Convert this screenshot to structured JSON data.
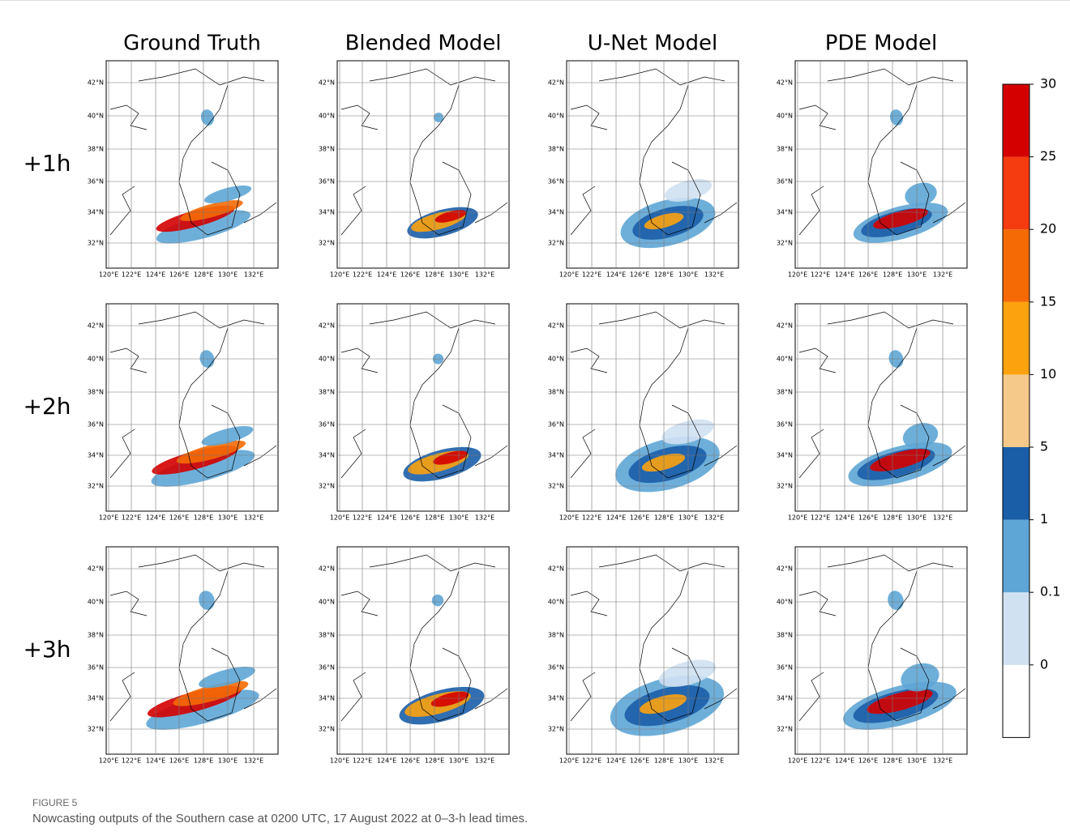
{
  "figure": {
    "column_titles": [
      "Ground Truth",
      "Blended Model",
      "U-Net Model",
      "PDE Model"
    ],
    "row_labels": [
      "+1h",
      "+2h",
      "+3h"
    ],
    "lat_labels": [
      "42°N",
      "40°N",
      "38°N",
      "36°N",
      "34°N",
      "32°N"
    ],
    "lon_labels": [
      "120°E",
      "122°E",
      "124°E",
      "126°E",
      "128°E",
      "130°E",
      "132°E"
    ],
    "colorbar": {
      "ticks": [
        0,
        0.1,
        1,
        5,
        10,
        15,
        20,
        25,
        30
      ],
      "colors": [
        "#ffffff",
        "#d0e1f2",
        "#5ea6d6",
        "#1b5ea8",
        "#f5c98a",
        "#fca20e",
        "#f56a04",
        "#f53b10",
        "#d40000"
      ]
    }
  },
  "caption": {
    "label": "FIGURE 5",
    "text": "Nowcasting outputs of the Southern case at 0200 UTC, 17 August 2022 at 0–3-h lead times."
  }
}
